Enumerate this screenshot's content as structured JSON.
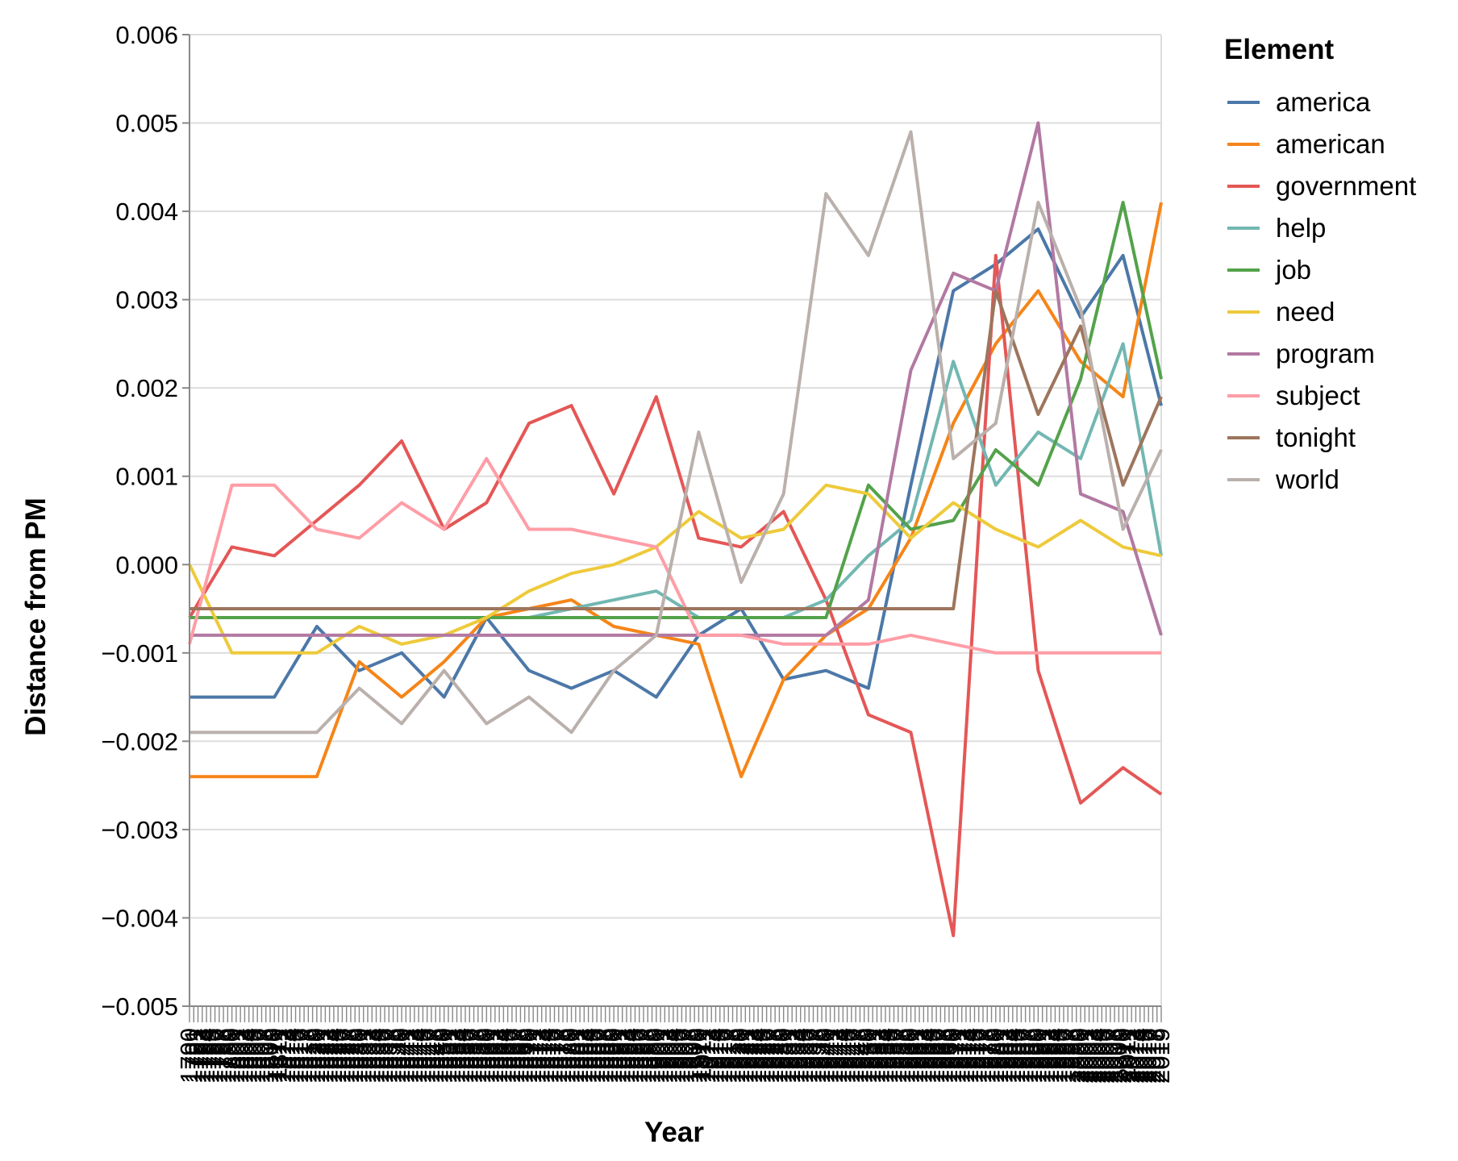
{
  "chart_data": {
    "type": "line",
    "title": "",
    "xlabel": "Year",
    "ylabel": "Distance from PM",
    "ylim": [
      -0.005,
      0.006
    ],
    "yticks": [
      "0.006",
      "0.005",
      "0.004",
      "0.003",
      "0.002",
      "0.001",
      "0.000",
      "−0.001",
      "−0.002",
      "−0.003",
      "−0.004",
      "−0.005"
    ],
    "x_tick_range": [
      1790,
      2019
    ],
    "x_tick_first_label": "1790",
    "x_tick_last_label": "2019",
    "grid": true,
    "legend": {
      "title": "Element",
      "placement": "right"
    },
    "series": [
      {
        "name": "america",
        "color": "#4c78a8",
        "x": [
          1790,
          1800,
          1810,
          1820,
          1830,
          1840,
          1850,
          1860,
          1870,
          1880,
          1890,
          1900,
          1910,
          1920,
          1930,
          1940,
          1950,
          1960,
          1970,
          1980,
          1990,
          2000,
          2010,
          2019
        ],
        "y": [
          -0.0015,
          -0.0015,
          -0.0015,
          -0.0007,
          -0.0012,
          -0.001,
          -0.0015,
          -0.0006,
          -0.0012,
          -0.0014,
          -0.0012,
          -0.0015,
          -0.0008,
          -0.0005,
          -0.0013,
          -0.0012,
          -0.0014,
          0.0009,
          0.0031,
          0.0034,
          0.0038,
          0.0028,
          0.0035,
          0.0018
        ]
      },
      {
        "name": "american",
        "color": "#f58518",
        "x": [
          1790,
          1800,
          1810,
          1820,
          1830,
          1840,
          1850,
          1860,
          1870,
          1880,
          1890,
          1900,
          1910,
          1920,
          1930,
          1940,
          1950,
          1960,
          1970,
          1980,
          1990,
          2000,
          2010,
          2019
        ],
        "y": [
          -0.0024,
          -0.0024,
          -0.0024,
          -0.0024,
          -0.0011,
          -0.0015,
          -0.0011,
          -0.0006,
          -0.0005,
          -0.0004,
          -0.0007,
          -0.0008,
          -0.0009,
          -0.0024,
          -0.0013,
          -0.0008,
          -0.0005,
          0.0003,
          0.0016,
          0.0025,
          0.0031,
          0.0023,
          0.0019,
          0.0041
        ]
      },
      {
        "name": "government",
        "color": "#e45756",
        "x": [
          1790,
          1800,
          1810,
          1820,
          1830,
          1840,
          1850,
          1860,
          1870,
          1880,
          1890,
          1900,
          1910,
          1920,
          1930,
          1940,
          1950,
          1960,
          1970,
          1980,
          1990,
          2000,
          2010,
          2019
        ],
        "y": [
          -0.0006,
          0.0002,
          0.0001,
          0.0005,
          0.0009,
          0.0014,
          0.0004,
          0.0007,
          0.0016,
          0.0018,
          0.0008,
          0.0019,
          0.0003,
          0.0002,
          0.0006,
          -0.0004,
          -0.0017,
          -0.0019,
          -0.0042,
          0.0035,
          -0.0012,
          -0.0027,
          -0.0023,
          -0.0026
        ]
      },
      {
        "name": "help",
        "color": "#72b7b2",
        "x": [
          1790,
          1800,
          1810,
          1820,
          1830,
          1840,
          1850,
          1860,
          1870,
          1880,
          1890,
          1900,
          1910,
          1920,
          1930,
          1940,
          1950,
          1960,
          1970,
          1980,
          1990,
          2000,
          2010,
          2019
        ],
        "y": [
          -0.0006,
          -0.0006,
          -0.0006,
          -0.0006,
          -0.0006,
          -0.0006,
          -0.0006,
          -0.0006,
          -0.0006,
          -0.0005,
          -0.0004,
          -0.0003,
          -0.0006,
          -0.0006,
          -0.0006,
          -0.0004,
          0.0001,
          0.0005,
          0.0023,
          0.0009,
          0.0015,
          0.0012,
          0.0025,
          0.0001
        ]
      },
      {
        "name": "job",
        "color": "#54a24b",
        "x": [
          1790,
          1800,
          1810,
          1820,
          1830,
          1840,
          1850,
          1860,
          1870,
          1880,
          1890,
          1900,
          1910,
          1920,
          1930,
          1940,
          1950,
          1960,
          1970,
          1980,
          1990,
          2000,
          2010,
          2019
        ],
        "y": [
          -0.0006,
          -0.0006,
          -0.0006,
          -0.0006,
          -0.0006,
          -0.0006,
          -0.0006,
          -0.0006,
          -0.0006,
          -0.0006,
          -0.0006,
          -0.0006,
          -0.0006,
          -0.0006,
          -0.0006,
          -0.0006,
          0.0009,
          0.0004,
          0.0005,
          0.0013,
          0.0009,
          0.0021,
          0.0041,
          0.0021
        ]
      },
      {
        "name": "need",
        "color": "#eeca3b",
        "x": [
          1790,
          1800,
          1810,
          1820,
          1830,
          1840,
          1850,
          1860,
          1870,
          1880,
          1890,
          1900,
          1910,
          1920,
          1930,
          1940,
          1950,
          1960,
          1970,
          1980,
          1990,
          2000,
          2010,
          2019
        ],
        "y": [
          0.0,
          -0.001,
          -0.001,
          -0.001,
          -0.0007,
          -0.0009,
          -0.0008,
          -0.0006,
          -0.0003,
          -0.0001,
          0.0,
          0.0002,
          0.0006,
          0.0003,
          0.0004,
          0.0009,
          0.0008,
          0.0003,
          0.0007,
          0.0004,
          0.0002,
          0.0005,
          0.0002,
          0.0001
        ]
      },
      {
        "name": "program",
        "color": "#b279a2",
        "x": [
          1790,
          1800,
          1810,
          1820,
          1830,
          1840,
          1850,
          1860,
          1870,
          1880,
          1890,
          1900,
          1910,
          1920,
          1930,
          1940,
          1950,
          1960,
          1970,
          1980,
          1990,
          2000,
          2010,
          2019
        ],
        "y": [
          -0.0008,
          -0.0008,
          -0.0008,
          -0.0008,
          -0.0008,
          -0.0008,
          -0.0008,
          -0.0008,
          -0.0008,
          -0.0008,
          -0.0008,
          -0.0008,
          -0.0008,
          -0.0008,
          -0.0008,
          -0.0008,
          -0.0004,
          0.0022,
          0.0033,
          0.0031,
          0.005,
          0.0008,
          0.0006,
          -0.0008
        ]
      },
      {
        "name": "subject",
        "color": "#ff9da6",
        "x": [
          1790,
          1800,
          1810,
          1820,
          1830,
          1840,
          1850,
          1860,
          1870,
          1880,
          1890,
          1900,
          1910,
          1920,
          1930,
          1940,
          1950,
          1960,
          1970,
          1980,
          1990,
          2000,
          2010,
          2019
        ],
        "y": [
          -0.0009,
          0.0009,
          0.0009,
          0.0004,
          0.0003,
          0.0007,
          0.0004,
          0.0012,
          0.0004,
          0.0004,
          0.0003,
          0.0002,
          -0.0008,
          -0.0008,
          -0.0009,
          -0.0009,
          -0.0009,
          -0.0008,
          -0.0009,
          -0.001,
          -0.001,
          -0.001,
          -0.001,
          -0.001
        ]
      },
      {
        "name": "tonight",
        "color": "#9d755d",
        "x": [
          1790,
          1800,
          1810,
          1820,
          1830,
          1840,
          1850,
          1860,
          1870,
          1880,
          1890,
          1900,
          1910,
          1920,
          1930,
          1940,
          1950,
          1960,
          1970,
          1980,
          1990,
          2000,
          2010,
          2019
        ],
        "y": [
          -0.0005,
          -0.0005,
          -0.0005,
          -0.0005,
          -0.0005,
          -0.0005,
          -0.0005,
          -0.0005,
          -0.0005,
          -0.0005,
          -0.0005,
          -0.0005,
          -0.0005,
          -0.0005,
          -0.0005,
          -0.0005,
          -0.0005,
          -0.0005,
          -0.0005,
          0.0031,
          0.0017,
          0.0027,
          0.0009,
          0.0019
        ]
      },
      {
        "name": "world",
        "color": "#bab0ac",
        "x": [
          1790,
          1800,
          1810,
          1820,
          1830,
          1840,
          1850,
          1860,
          1870,
          1880,
          1890,
          1900,
          1910,
          1920,
          1930,
          1940,
          1950,
          1960,
          1970,
          1980,
          1990,
          2000,
          2010,
          2019
        ],
        "y": [
          -0.0019,
          -0.0019,
          -0.0019,
          -0.0019,
          -0.0014,
          -0.0018,
          -0.0012,
          -0.0018,
          -0.0015,
          -0.0019,
          -0.0012,
          -0.0008,
          0.0015,
          -0.0002,
          0.0008,
          0.0042,
          0.0035,
          0.0049,
          0.0012,
          0.0016,
          0.0041,
          0.0029,
          0.0004,
          0.0013
        ]
      }
    ]
  }
}
